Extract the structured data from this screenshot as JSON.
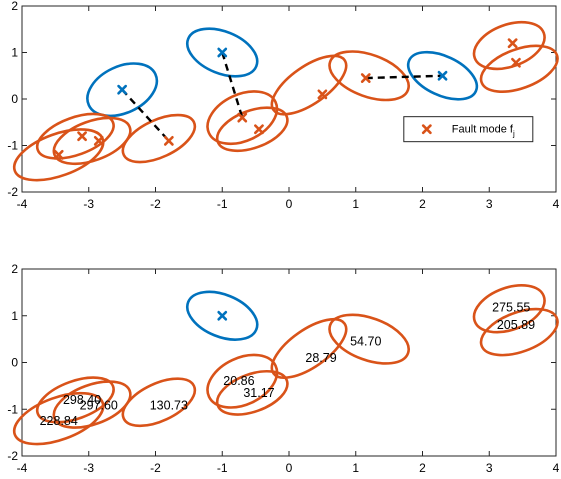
{
  "colors": {
    "fault": "#D95319",
    "nominal": "#0072BD",
    "dash": "#000000",
    "axis": "#262626"
  },
  "chart_data": [
    {
      "type": "scatter",
      "title": "",
      "xlabel": "",
      "ylabel": "",
      "xlim": [
        -4,
        4
      ],
      "ylim": [
        -2,
        2
      ],
      "xticks": [
        -4,
        -3,
        -2,
        -1,
        0,
        1,
        2,
        3,
        4
      ],
      "yticks": [
        -2,
        -1,
        0,
        1,
        2
      ],
      "xtick_labels": [
        "-4",
        "-3",
        "-2",
        "-1",
        "0",
        "1",
        "2",
        "3",
        "4"
      ],
      "ytick_labels": [
        "-2",
        "-1",
        "0",
        "1",
        "2"
      ],
      "grid": false,
      "legend": {
        "location": "east",
        "entries": [
          {
            "label": "Fault mode f",
            "subscript": "j",
            "series": "fault"
          }
        ]
      },
      "ellipses": [
        {
          "series": "nominal",
          "center": [
            -2.5,
            0.2
          ],
          "rx": 0.55,
          "ry": 0.5,
          "angle": -25
        },
        {
          "series": "nominal",
          "center": [
            -1.0,
            1.0
          ],
          "rx": 0.55,
          "ry": 0.45,
          "angle": 22
        },
        {
          "series": "nominal",
          "center": [
            2.3,
            0.5
          ],
          "rx": 0.55,
          "ry": 0.42,
          "angle": 25
        },
        {
          "series": "fault",
          "center": [
            -3.45,
            -1.2
          ],
          "rx": 0.7,
          "ry": 0.45,
          "angle": -20
        },
        {
          "series": "fault",
          "center": [
            -3.2,
            -0.8
          ],
          "rx": 0.6,
          "ry": 0.4,
          "angle": -20
        },
        {
          "series": "fault",
          "center": [
            -2.95,
            -0.9
          ],
          "rx": 0.6,
          "ry": 0.42,
          "angle": -20
        },
        {
          "series": "fault",
          "center": [
            -1.95,
            -0.85
          ],
          "rx": 0.58,
          "ry": 0.4,
          "angle": -25
        },
        {
          "series": "fault",
          "center": [
            -0.7,
            -0.4
          ],
          "rx": 0.55,
          "ry": 0.5,
          "angle": -25
        },
        {
          "series": "fault",
          "center": [
            -0.55,
            -0.65
          ],
          "rx": 0.55,
          "ry": 0.4,
          "angle": -20
        },
        {
          "series": "fault",
          "center": [
            0.3,
            0.3
          ],
          "rx": 0.65,
          "ry": 0.4,
          "angle": -35
        },
        {
          "series": "fault",
          "center": [
            1.2,
            0.5
          ],
          "rx": 0.62,
          "ry": 0.45,
          "angle": 20
        },
        {
          "series": "fault",
          "center": [
            3.3,
            1.15
          ],
          "rx": 0.55,
          "ry": 0.45,
          "angle": -20
        },
        {
          "series": "fault",
          "center": [
            3.45,
            0.65
          ],
          "rx": 0.6,
          "ry": 0.42,
          "angle": -20
        }
      ],
      "points": [
        {
          "series": "nominal",
          "x": -2.5,
          "y": 0.2
        },
        {
          "series": "nominal",
          "x": -1.0,
          "y": 1.0
        },
        {
          "series": "nominal",
          "x": 2.3,
          "y": 0.5
        },
        {
          "series": "fault",
          "x": -3.45,
          "y": -1.2
        },
        {
          "series": "fault",
          "x": -3.1,
          "y": -0.8
        },
        {
          "series": "fault",
          "x": -2.85,
          "y": -0.9
        },
        {
          "series": "fault",
          "x": -1.8,
          "y": -0.9
        },
        {
          "series": "fault",
          "x": -0.7,
          "y": -0.4
        },
        {
          "series": "fault",
          "x": -0.45,
          "y": -0.65
        },
        {
          "series": "fault",
          "x": 0.5,
          "y": 0.1
        },
        {
          "series": "fault",
          "x": 1.15,
          "y": 0.45
        },
        {
          "series": "fault",
          "x": 3.35,
          "y": 1.2
        },
        {
          "series": "fault",
          "x": 3.4,
          "y": 0.78
        }
      ],
      "connections": [
        {
          "from": [
            -2.5,
            0.2
          ],
          "to": [
            -1.8,
            -0.9
          ]
        },
        {
          "from": [
            -1.0,
            1.0
          ],
          "to": [
            -0.7,
            -0.4
          ]
        },
        {
          "from": [
            1.15,
            0.45
          ],
          "to": [
            2.3,
            0.5
          ]
        }
      ]
    },
    {
      "type": "scatter",
      "title": "",
      "xlabel": "",
      "ylabel": "",
      "xlim": [
        -4,
        4
      ],
      "ylim": [
        -2,
        2
      ],
      "xticks": [
        -4,
        -3,
        -2,
        -1,
        0,
        1,
        2,
        3,
        4
      ],
      "yticks": [
        -2,
        -1,
        0,
        1,
        2
      ],
      "xtick_labels": [
        "-4",
        "-3",
        "-2",
        "-1",
        "0",
        "1",
        "2",
        "3",
        "4"
      ],
      "ytick_labels": [
        "-2",
        "-1",
        "0",
        "1",
        "2"
      ],
      "grid": false,
      "ellipses": [
        {
          "series": "nominal",
          "center": [
            -1.0,
            1.0
          ],
          "rx": 0.55,
          "ry": 0.45,
          "angle": 22
        },
        {
          "series": "fault",
          "center": [
            -3.45,
            -1.2
          ],
          "rx": 0.7,
          "ry": 0.45,
          "angle": -20
        },
        {
          "series": "fault",
          "center": [
            -3.2,
            -0.8
          ],
          "rx": 0.6,
          "ry": 0.4,
          "angle": -20
        },
        {
          "series": "fault",
          "center": [
            -2.95,
            -0.9
          ],
          "rx": 0.6,
          "ry": 0.42,
          "angle": -20
        },
        {
          "series": "fault",
          "center": [
            -1.95,
            -0.85
          ],
          "rx": 0.58,
          "ry": 0.4,
          "angle": -25
        },
        {
          "series": "fault",
          "center": [
            -0.7,
            -0.4
          ],
          "rx": 0.55,
          "ry": 0.5,
          "angle": -25
        },
        {
          "series": "fault",
          "center": [
            -0.55,
            -0.65
          ],
          "rx": 0.55,
          "ry": 0.4,
          "angle": -20
        },
        {
          "series": "fault",
          "center": [
            0.3,
            0.3
          ],
          "rx": 0.65,
          "ry": 0.4,
          "angle": -35
        },
        {
          "series": "fault",
          "center": [
            1.2,
            0.5
          ],
          "rx": 0.62,
          "ry": 0.45,
          "angle": 20
        },
        {
          "series": "fault",
          "center": [
            3.3,
            1.15
          ],
          "rx": 0.55,
          "ry": 0.45,
          "angle": -20
        },
        {
          "series": "fault",
          "center": [
            3.45,
            0.65
          ],
          "rx": 0.6,
          "ry": 0.42,
          "angle": -20
        }
      ],
      "points": [
        {
          "series": "nominal",
          "x": -1.0,
          "y": 1.0
        }
      ],
      "annotations": [
        {
          "text": "228.84",
          "x": -3.45,
          "y": -1.25
        },
        {
          "text": "298.40",
          "x": -3.1,
          "y": -0.8
        },
        {
          "text": "297.60",
          "x": -2.85,
          "y": -0.92
        },
        {
          "text": "130.73",
          "x": -1.8,
          "y": -0.92
        },
        {
          "text": "20.86",
          "x": -0.75,
          "y": -0.4
        },
        {
          "text": "31.17",
          "x": -0.45,
          "y": -0.65
        },
        {
          "text": "28.79",
          "x": 0.48,
          "y": 0.1
        },
        {
          "text": "54.70",
          "x": 1.15,
          "y": 0.45
        },
        {
          "text": "275.55",
          "x": 3.33,
          "y": 1.18
        },
        {
          "text": "205.89",
          "x": 3.4,
          "y": 0.8
        }
      ]
    }
  ]
}
